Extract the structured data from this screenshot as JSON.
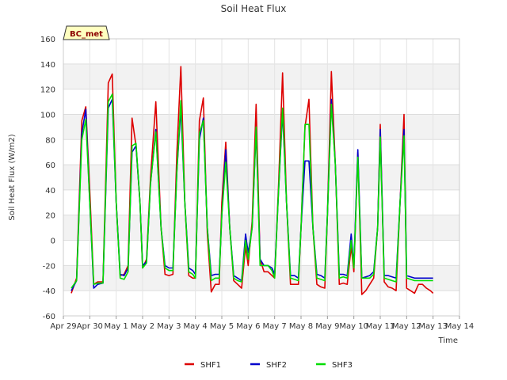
{
  "chart_data": {
    "type": "line",
    "title": "Soil Heat Flux",
    "xlabel": "Time",
    "ylabel": "Soil Heat Flux (W/m2)",
    "badge": "BC_met",
    "xlim": [
      0,
      15
    ],
    "ylim": [
      -60,
      160
    ],
    "x_ticks": [
      {
        "value": 0,
        "label": "Apr 29"
      },
      {
        "value": 1,
        "label": "Apr 30"
      },
      {
        "value": 2,
        "label": "May 1"
      },
      {
        "value": 3,
        "label": "May 2"
      },
      {
        "value": 4,
        "label": "May 3"
      },
      {
        "value": 5,
        "label": "May 4"
      },
      {
        "value": 6,
        "label": "May 5"
      },
      {
        "value": 7,
        "label": "May 6"
      },
      {
        "value": 8,
        "label": "May 7"
      },
      {
        "value": 9,
        "label": "May 8"
      },
      {
        "value": 10,
        "label": "May 9"
      },
      {
        "value": 11,
        "label": "May 10"
      },
      {
        "value": 12,
        "label": "May 11"
      },
      {
        "value": 13,
        "label": "May 12"
      },
      {
        "value": 14,
        "label": "May 13"
      },
      {
        "value": 15,
        "label": "May 14"
      }
    ],
    "y_ticks": [
      -60,
      -40,
      -20,
      0,
      20,
      40,
      60,
      80,
      100,
      120,
      140,
      160
    ],
    "series": [
      {
        "name": "SHF1",
        "color": "#dd0000",
        "x": [
          0.3,
          0.5,
          0.7,
          0.85,
          1.0,
          1.15,
          1.3,
          1.5,
          1.7,
          1.85,
          2.0,
          2.15,
          2.3,
          2.45,
          2.6,
          2.75,
          2.9,
          3.0,
          3.15,
          3.3,
          3.5,
          3.7,
          3.85,
          4.0,
          4.15,
          4.3,
          4.45,
          4.6,
          4.75,
          4.9,
          5.0,
          5.15,
          5.3,
          5.45,
          5.6,
          5.75,
          5.9,
          6.0,
          6.15,
          6.3,
          6.45,
          6.6,
          6.75,
          6.9,
          7.0,
          7.15,
          7.3,
          7.45,
          7.6,
          7.75,
          7.9,
          8.0,
          8.15,
          8.3,
          8.45,
          8.6,
          8.75,
          8.9,
          9.0,
          9.15,
          9.3,
          9.45,
          9.6,
          9.75,
          9.9,
          10.0,
          10.15,
          10.3,
          10.45,
          10.6,
          10.75,
          10.9,
          11.0,
          11.15,
          11.3,
          11.45,
          11.6,
          11.75,
          11.9,
          12.0,
          12.15,
          12.3,
          12.45,
          12.6,
          12.75,
          12.9,
          13.0,
          13.15,
          13.3,
          13.45,
          13.6,
          13.75,
          13.9,
          14.0
        ],
        "values": [
          -42,
          -30,
          95,
          106,
          40,
          -35,
          -33,
          -33,
          125,
          132,
          30,
          -28,
          -27,
          -20,
          97,
          75,
          30,
          -22,
          -15,
          50,
          110,
          10,
          -27,
          -28,
          -27,
          70,
          138,
          30,
          -28,
          -30,
          -30,
          95,
          113,
          5,
          -41,
          -35,
          -35,
          30,
          78,
          10,
          -32,
          -35,
          -38,
          -5,
          -20,
          15,
          108,
          -15,
          -25,
          -25,
          -28,
          -30,
          45,
          133,
          30,
          -35,
          -35,
          -35,
          10,
          90,
          112,
          10,
          -35,
          -37,
          -38,
          20,
          134,
          60,
          -35,
          -34,
          -35,
          -5,
          -25,
          70,
          -43,
          -40,
          -35,
          -30,
          10,
          92,
          -33,
          -37,
          -38,
          -40,
          30,
          100,
          -38,
          -40,
          -42,
          -35,
          -35,
          -38,
          -40,
          -42
        ],
        "_note": ""
      },
      {
        "name": "SHF2",
        "color": "#0000cc",
        "x": [
          0.3,
          0.5,
          0.7,
          0.85,
          1.0,
          1.15,
          1.3,
          1.5,
          1.7,
          1.85,
          2.0,
          2.15,
          2.3,
          2.45,
          2.6,
          2.75,
          2.9,
          3.0,
          3.15,
          3.3,
          3.5,
          3.7,
          3.85,
          4.0,
          4.15,
          4.3,
          4.45,
          4.6,
          4.75,
          4.9,
          5.0,
          5.15,
          5.3,
          5.45,
          5.6,
          5.75,
          5.9,
          6.0,
          6.15,
          6.3,
          6.45,
          6.6,
          6.75,
          6.9,
          7.0,
          7.15,
          7.3,
          7.45,
          7.6,
          7.75,
          7.9,
          8.0,
          8.15,
          8.3,
          8.45,
          8.6,
          8.75,
          8.9,
          9.0,
          9.15,
          9.3,
          9.45,
          9.6,
          9.75,
          9.9,
          10.0,
          10.15,
          10.3,
          10.45,
          10.6,
          10.75,
          10.9,
          11.0,
          11.15,
          11.3,
          11.45,
          11.6,
          11.75,
          11.9,
          12.0,
          12.15,
          12.3,
          12.45,
          12.6,
          12.75,
          12.9,
          13.0,
          13.15,
          13.3,
          13.45,
          13.6,
          13.75,
          13.9,
          14.0
        ],
        "values": [
          -40,
          -32,
          85,
          104,
          30,
          -38,
          -35,
          -34,
          105,
          112,
          30,
          -27,
          -28,
          -22,
          70,
          75,
          30,
          -20,
          -17,
          45,
          88,
          10,
          -20,
          -22,
          -22,
          55,
          105,
          30,
          -22,
          -24,
          -27,
          80,
          97,
          10,
          -28,
          -27,
          -27,
          20,
          72,
          10,
          -28,
          -30,
          -32,
          5,
          -10,
          10,
          88,
          -15,
          -20,
          -20,
          -22,
          -27,
          40,
          102,
          30,
          -28,
          -28,
          -30,
          10,
          63,
          63,
          10,
          -27,
          -28,
          -30,
          20,
          112,
          60,
          -27,
          -27,
          -28,
          5,
          -20,
          72,
          -30,
          -29,
          -28,
          -25,
          10,
          88,
          -28,
          -28,
          -29,
          -30,
          30,
          88,
          -28,
          -29,
          -30,
          -30,
          -30,
          -30,
          -30,
          -30
        ]
      },
      {
        "name": "SHF3",
        "color": "#00dd00",
        "x": [
          0.3,
          0.5,
          0.7,
          0.85,
          1.0,
          1.15,
          1.3,
          1.5,
          1.7,
          1.85,
          2.0,
          2.15,
          2.3,
          2.45,
          2.6,
          2.75,
          2.9,
          3.0,
          3.15,
          3.3,
          3.5,
          3.7,
          3.85,
          4.0,
          4.15,
          4.3,
          4.45,
          4.6,
          4.75,
          4.9,
          5.0,
          5.15,
          5.3,
          5.45,
          5.6,
          5.75,
          5.9,
          6.0,
          6.15,
          6.3,
          6.45,
          6.6,
          6.75,
          6.9,
          7.0,
          7.15,
          7.3,
          7.45,
          7.6,
          7.75,
          7.9,
          8.0,
          8.15,
          8.3,
          8.45,
          8.6,
          8.75,
          8.9,
          9.0,
          9.15,
          9.3,
          9.45,
          9.6,
          9.75,
          9.9,
          10.0,
          10.15,
          10.3,
          10.45,
          10.6,
          10.75,
          10.9,
          11.0,
          11.15,
          11.3,
          11.45,
          11.6,
          11.75,
          11.9,
          12.0,
          12.15,
          12.3,
          12.45,
          12.6,
          12.75,
          12.9,
          13.0,
          13.15,
          13.3,
          13.45,
          13.6,
          13.75,
          13.9,
          14.0
        ],
        "values": [
          -38,
          -32,
          80,
          96,
          30,
          -35,
          -34,
          -34,
          110,
          116,
          30,
          -30,
          -31,
          -25,
          75,
          77,
          30,
          -22,
          -18,
          45,
          86,
          10,
          -22,
          -24,
          -24,
          55,
          111,
          30,
          -25,
          -27,
          -30,
          85,
          95,
          10,
          -32,
          -30,
          -30,
          20,
          62,
          10,
          -30,
          -32,
          -33,
          0,
          -15,
          10,
          90,
          -20,
          -20,
          -20,
          -24,
          -30,
          40,
          105,
          30,
          -30,
          -31,
          -32,
          10,
          92,
          92,
          10,
          -30,
          -31,
          -32,
          20,
          108,
          60,
          -30,
          -29,
          -30,
          0,
          -22,
          66,
          -30,
          -30,
          -30,
          -27,
          10,
          82,
          -30,
          -31,
          -32,
          -33,
          30,
          83,
          -30,
          -31,
          -32,
          -32,
          -32,
          -32,
          -32,
          -32
        ]
      }
    ],
    "legend_position": "bottom"
  }
}
